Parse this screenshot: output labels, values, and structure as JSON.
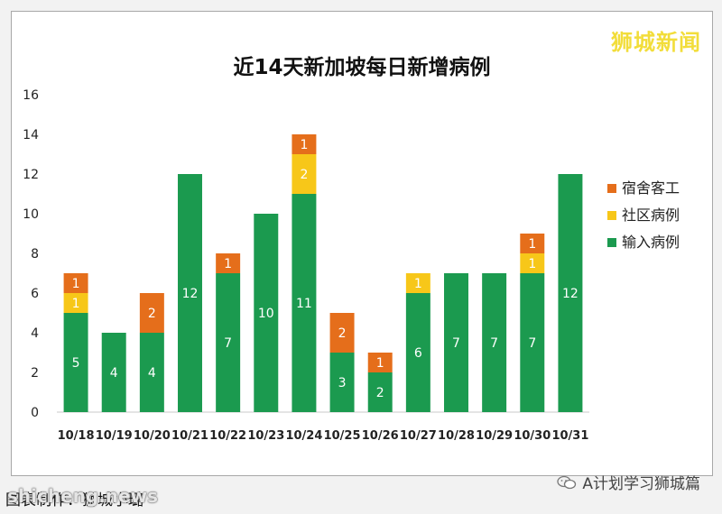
{
  "brand": "狮城新闻",
  "credit": "图表制作：狮城小璐",
  "site_watermark": "shicheng.news",
  "channel": {
    "label": "A计划学习狮城篇",
    "icon": "wechat-icon"
  },
  "colors": {
    "dorm": "#e56e1b",
    "community": "#f7c719",
    "imported": "#1b9a4f"
  },
  "chart_data": {
    "type": "bar",
    "stacked": true,
    "title": "近14天新加坡每日新增病例",
    "categories": [
      "10/18",
      "10/19",
      "10/20",
      "10/21",
      "10/22",
      "10/23",
      "10/24",
      "10/25",
      "10/26",
      "10/27",
      "10/28",
      "10/29",
      "10/30",
      "10/31"
    ],
    "series": [
      {
        "name": "输入病例",
        "color": "#1b9a4f",
        "values": [
          5,
          4,
          4,
          12,
          7,
          10,
          11,
          3,
          2,
          6,
          7,
          7,
          7,
          12
        ]
      },
      {
        "name": "社区病例",
        "color": "#f7c719",
        "values": [
          1,
          0,
          0,
          0,
          0,
          0,
          2,
          0,
          0,
          1,
          0,
          0,
          1,
          0
        ]
      },
      {
        "name": "宿舍客工",
        "color": "#e56e1b",
        "values": [
          1,
          0,
          2,
          0,
          1,
          0,
          1,
          2,
          1,
          0,
          0,
          0,
          1,
          0
        ]
      }
    ],
    "legend_order": [
      "宿舍客工",
      "社区病例",
      "输入病例"
    ],
    "ylim": [
      0,
      16
    ],
    "yticks": [
      0,
      2,
      4,
      6,
      8,
      10,
      12,
      14,
      16
    ],
    "legend_position": "right",
    "grid": false
  }
}
